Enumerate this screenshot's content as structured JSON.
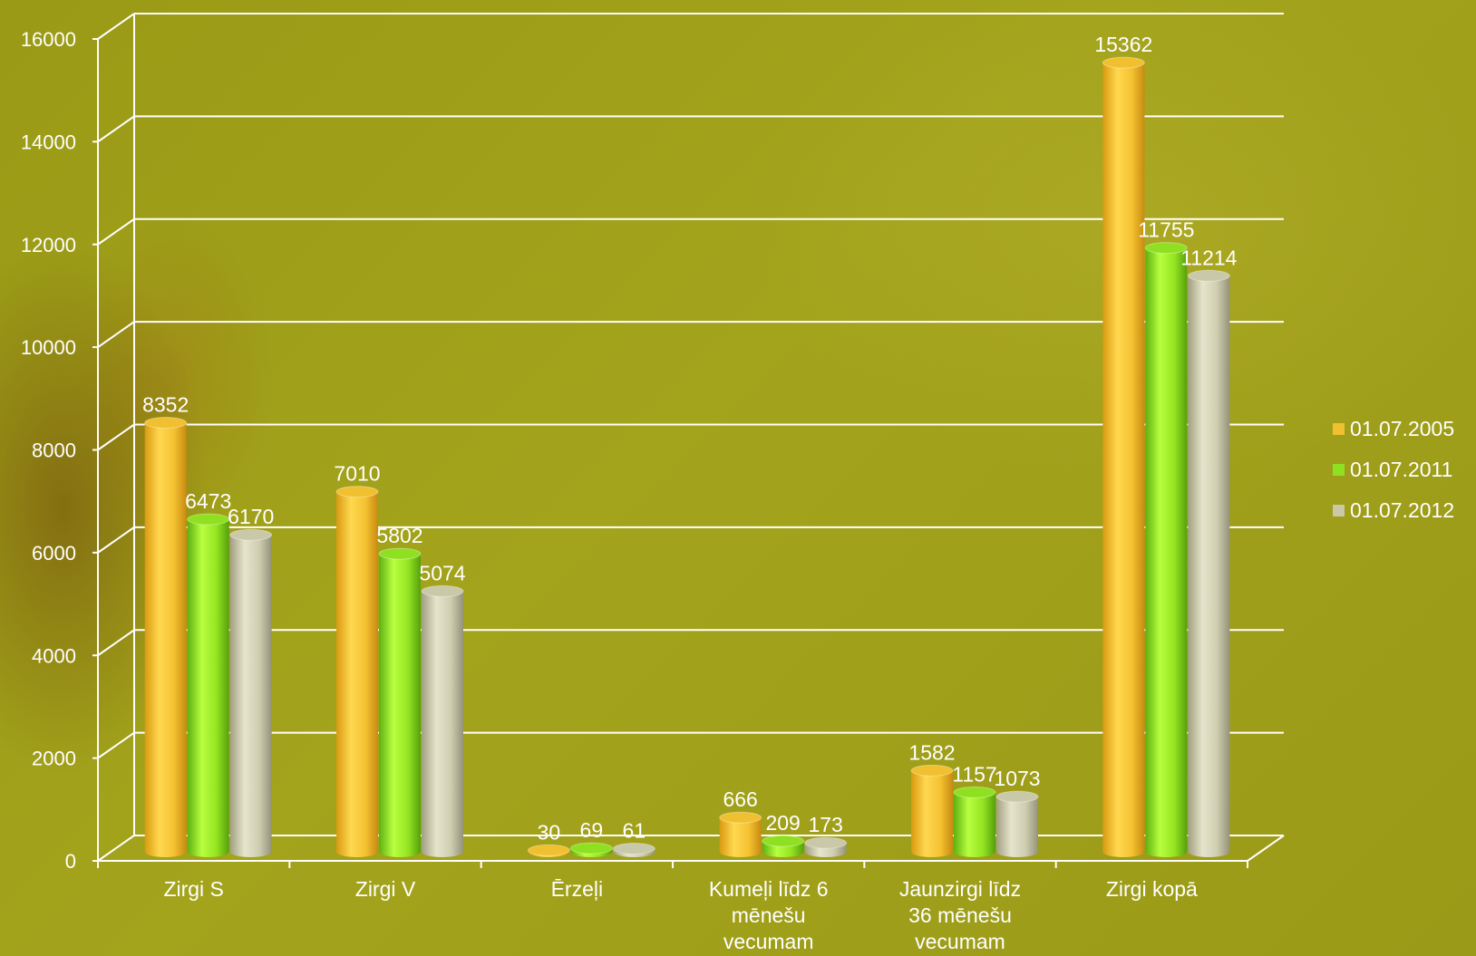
{
  "chart_data": {
    "type": "bar",
    "title": "",
    "xlabel": "",
    "ylabel": "",
    "ylim": [
      0,
      16000
    ],
    "yticks": [
      0,
      2000,
      4000,
      6000,
      8000,
      10000,
      12000,
      14000,
      16000
    ],
    "grid": true,
    "legend_position": "right",
    "categories": [
      [
        "Zirgi S"
      ],
      [
        "Zirgi V"
      ],
      [
        "Ērzeļi"
      ],
      [
        "Kumeļi līdz 6",
        "mēnešu",
        "vecumam"
      ],
      [
        "Jaunzirgi līdz",
        "36 mēnešu",
        "vecumam"
      ],
      [
        "Zirgi kopā"
      ]
    ],
    "series": [
      {
        "name": "01.07.2005",
        "color": "#f0c030",
        "values": [
          8352,
          7010,
          30,
          666,
          1582,
          15362
        ]
      },
      {
        "name": "01.07.2011",
        "color": "#8fe020",
        "values": [
          6473,
          5802,
          69,
          209,
          1157,
          11755
        ]
      },
      {
        "name": "01.07.2012",
        "color": "#c9c8a8",
        "values": [
          6170,
          5074,
          61,
          173,
          1073,
          11214
        ]
      }
    ]
  }
}
